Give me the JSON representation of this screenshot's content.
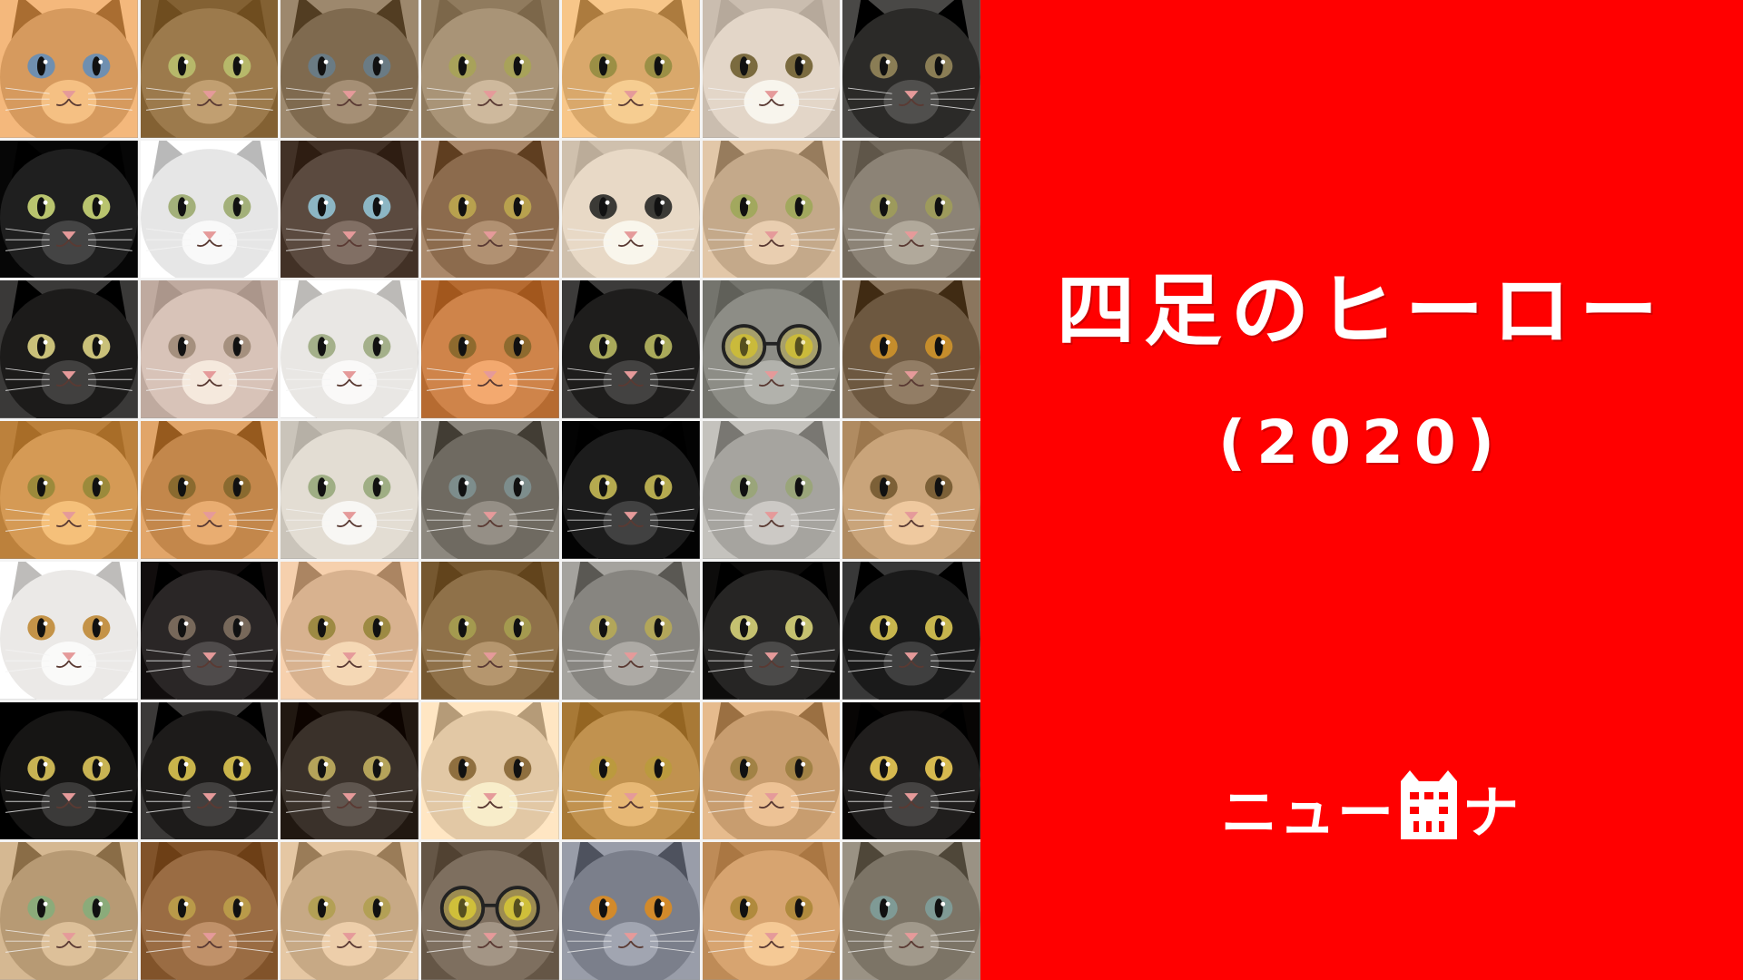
{
  "collage": {
    "rows": 7,
    "columns": 7,
    "tiles": [
      {
        "icon": "orange-tabby-cat-face",
        "fur": "#d69a5e",
        "eyes": "#6f8fb0"
      },
      {
        "icon": "brown-tabby-cat-face",
        "fur": "#9c7a4c",
        "eyes": "#b7b86a"
      },
      {
        "icon": "brown-tabby-cat-face",
        "fur": "#7f6a4f",
        "eyes": "#6a7b84"
      },
      {
        "icon": "calico-cat-face",
        "fur": "#a99477",
        "eyes": "#a8a25a"
      },
      {
        "icon": "orange-white-cat-face",
        "fur": "#d9a86b",
        "eyes": "#9b8f45"
      },
      {
        "icon": "calico-cat-face",
        "fur": "#e3d6c8",
        "eyes": "#7b6b3f"
      },
      {
        "icon": "tuxedo-calico-cat-face",
        "fur": "#2b2a28",
        "eyes": "#8a7d55"
      },
      {
        "icon": "black-white-cat-face",
        "fur": "#1f1f1f",
        "eyes": "#b9c46e"
      },
      {
        "icon": "white-cat-face",
        "fur": "#e6e6e6",
        "eyes": "#a3b07a"
      },
      {
        "icon": "siamese-cat-face",
        "fur": "#5b4a3f",
        "eyes": "#8cb6c4"
      },
      {
        "icon": "calico-cat-face",
        "fur": "#8c6b4d",
        "eyes": "#b8a14e"
      },
      {
        "icon": "cream-cat-face",
        "fur": "#e8d9c6",
        "eyes": "#3b3a36"
      },
      {
        "icon": "calico-cat-face",
        "fur": "#c4a98a",
        "eyes": "#a2a85e"
      },
      {
        "icon": "gray-tabby-cat-face",
        "fur": "#8c8376",
        "eyes": "#9d9a5c"
      },
      {
        "icon": "black-cat-face",
        "fur": "#1c1b1a",
        "eyes": "#c9c079"
      },
      {
        "icon": "pale-tabby-cat-face",
        "fur": "#d8c3b8",
        "eyes": "#a5907e"
      },
      {
        "icon": "white-cat-paw",
        "fur": "#e9e7e4",
        "eyes": "#a4b08a"
      },
      {
        "icon": "orange-white-cat-face",
        "fur": "#cf844a",
        "eyes": "#8e6a2e"
      },
      {
        "icon": "black-white-cat-face",
        "fur": "#1e1d1c",
        "eyes": "#a9a95a"
      },
      {
        "icon": "gray-cat-with-glasses",
        "fur": "#8d8d86",
        "eyes": "#c4b53c"
      },
      {
        "icon": "tortoiseshell-cat-face",
        "fur": "#6d5840",
        "eyes": "#c58d2c"
      },
      {
        "icon": "orange-tabby-cat-face",
        "fur": "#d59a55",
        "eyes": "#9c8a3b"
      },
      {
        "icon": "calico-cat-face",
        "fur": "#c3874b",
        "eyes": "#8a6a2f"
      },
      {
        "icon": "calico-cat-face",
        "fur": "#e3ddd3",
        "eyes": "#9fae84"
      },
      {
        "icon": "gray-tabby-cat-face",
        "fur": "#6f6a61",
        "eyes": "#7d8d8c"
      },
      {
        "icon": "black-white-cat-face",
        "fur": "#1c1c1c",
        "eyes": "#b5aa4f"
      },
      {
        "icon": "silver-tabby-cat-face",
        "fur": "#a6a49f",
        "eyes": "#9aa57a"
      },
      {
        "icon": "cream-cat-face",
        "fur": "#c9a47a",
        "eyes": "#7c6037"
      },
      {
        "icon": "white-cat-face",
        "fur": "#ebe9e7",
        "eyes": "#c49348"
      },
      {
        "icon": "black-white-cat-face",
        "fur": "#2a2626",
        "eyes": "#77685a"
      },
      {
        "icon": "calico-cat-face",
        "fur": "#d8b28f",
        "eyes": "#9d8a43"
      },
      {
        "icon": "brown-tabby-cat-face",
        "fur": "#8f7149",
        "eyes": "#a49a4f"
      },
      {
        "icon": "gray-tabby-cat-face",
        "fur": "#878580",
        "eyes": "#b2a65a"
      },
      {
        "icon": "tuxedo-cat-face",
        "fur": "#262524",
        "eyes": "#c5c170"
      },
      {
        "icon": "black-cat-face",
        "fur": "#1a1a1a",
        "eyes": "#c7b54d"
      },
      {
        "icon": "black-cat-face",
        "fur": "#161514",
        "eyes": "#c8b353"
      },
      {
        "icon": "black-cat-face",
        "fur": "#1d1b1a",
        "eyes": "#c9b44b"
      },
      {
        "icon": "calico-cat-face",
        "fur": "#3a312a",
        "eyes": "#b4a35a"
      },
      {
        "icon": "cream-cat-face",
        "fur": "#e2c8a5",
        "eyes": "#8f6f3f"
      },
      {
        "icon": "calico-cat-face",
        "fur": "#c1924f",
        "eyes": "#bb9a3e"
      },
      {
        "icon": "orange-tabby-cat-face",
        "fur": "#c89d6f",
        "eyes": "#a18245"
      },
      {
        "icon": "black-cat-face",
        "fur": "#201e1d",
        "eyes": "#d6b94f"
      },
      {
        "icon": "tabby-cat-face",
        "fur": "#b79a74",
        "eyes": "#8bab7a"
      },
      {
        "icon": "calico-cat-face",
        "fur": "#9a6c43",
        "eyes": "#b99a49"
      },
      {
        "icon": "calico-cat-face",
        "fur": "#c7a985",
        "eyes": "#b3a055"
      },
      {
        "icon": "tabby-cat-with-glasses",
        "fur": "#7e6f5f",
        "eyes": "#cbbd3b"
      },
      {
        "icon": "gray-cat-face",
        "fur": "#7b7f8b",
        "eyes": "#d28a2b"
      },
      {
        "icon": "orange-white-cat-face",
        "fur": "#d7a470",
        "eyes": "#b08a3d"
      },
      {
        "icon": "gray-tabby-cat-face",
        "fur": "#7c7466",
        "eyes": "#7f9a95"
      }
    ]
  },
  "panel": {
    "background": "#ff0000",
    "title": "四足のヒーロー",
    "year": "(2020)",
    "logo_text": "ニュー",
    "logo_suffix": "ナ",
    "logo_icon": "cat-building-logo-icon"
  }
}
